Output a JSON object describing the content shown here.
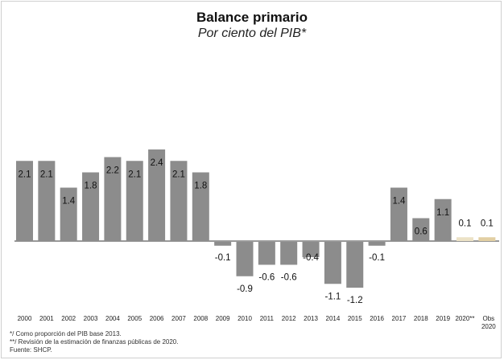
{
  "chart_data": {
    "type": "bar",
    "title": "Balance primario",
    "subtitle": "Por ciento del PIB*",
    "categories": [
      "2000",
      "2001",
      "2002",
      "2003",
      "2004",
      "2005",
      "2006",
      "2007",
      "2008",
      "2009",
      "2010",
      "2011",
      "2012",
      "2013",
      "2014",
      "2015",
      "2016",
      "2017",
      "2018",
      "2019",
      "2020**",
      "Obs 2020"
    ],
    "values": [
      2.1,
      2.1,
      1.4,
      1.8,
      2.2,
      2.1,
      2.4,
      2.1,
      1.8,
      -0.1,
      -0.9,
      -0.6,
      -0.6,
      -0.4,
      -1.1,
      -1.2,
      -0.1,
      1.4,
      0.6,
      1.1,
      0.1,
      0.1
    ],
    "value_labels": [
      "2.1",
      "2.1",
      "1.4",
      "1.8",
      "2.2",
      "2.1",
      "2.4",
      "2.1",
      "1.8",
      "-0.1",
      "-0.9",
      "-0.6",
      "-0.6",
      "-0.4",
      "-1.1",
      "-1.2",
      "-0.1",
      "1.4",
      "0.6",
      "1.1",
      "0.1",
      "0.1"
    ],
    "ylim": [
      -1.3,
      2.5
    ],
    "grid": false,
    "legend": "none",
    "colors": {
      "main": "#8c8c8c",
      "estimate": "#ece2c6",
      "observed": "#e2cfa3",
      "baseline": "#333333"
    },
    "bar_colors": [
      "main",
      "main",
      "main",
      "main",
      "main",
      "main",
      "main",
      "main",
      "main",
      "main",
      "main",
      "main",
      "main",
      "main",
      "main",
      "main",
      "main",
      "main",
      "main",
      "main",
      "estimate",
      "observed"
    ]
  },
  "footnotes": {
    "note1": "*/ Como proporción del PIB base 2013.",
    "note2": "**/ Revisión de la estimación de finanzas públicas de 2020.",
    "source": "Fuente: SHCP."
  }
}
